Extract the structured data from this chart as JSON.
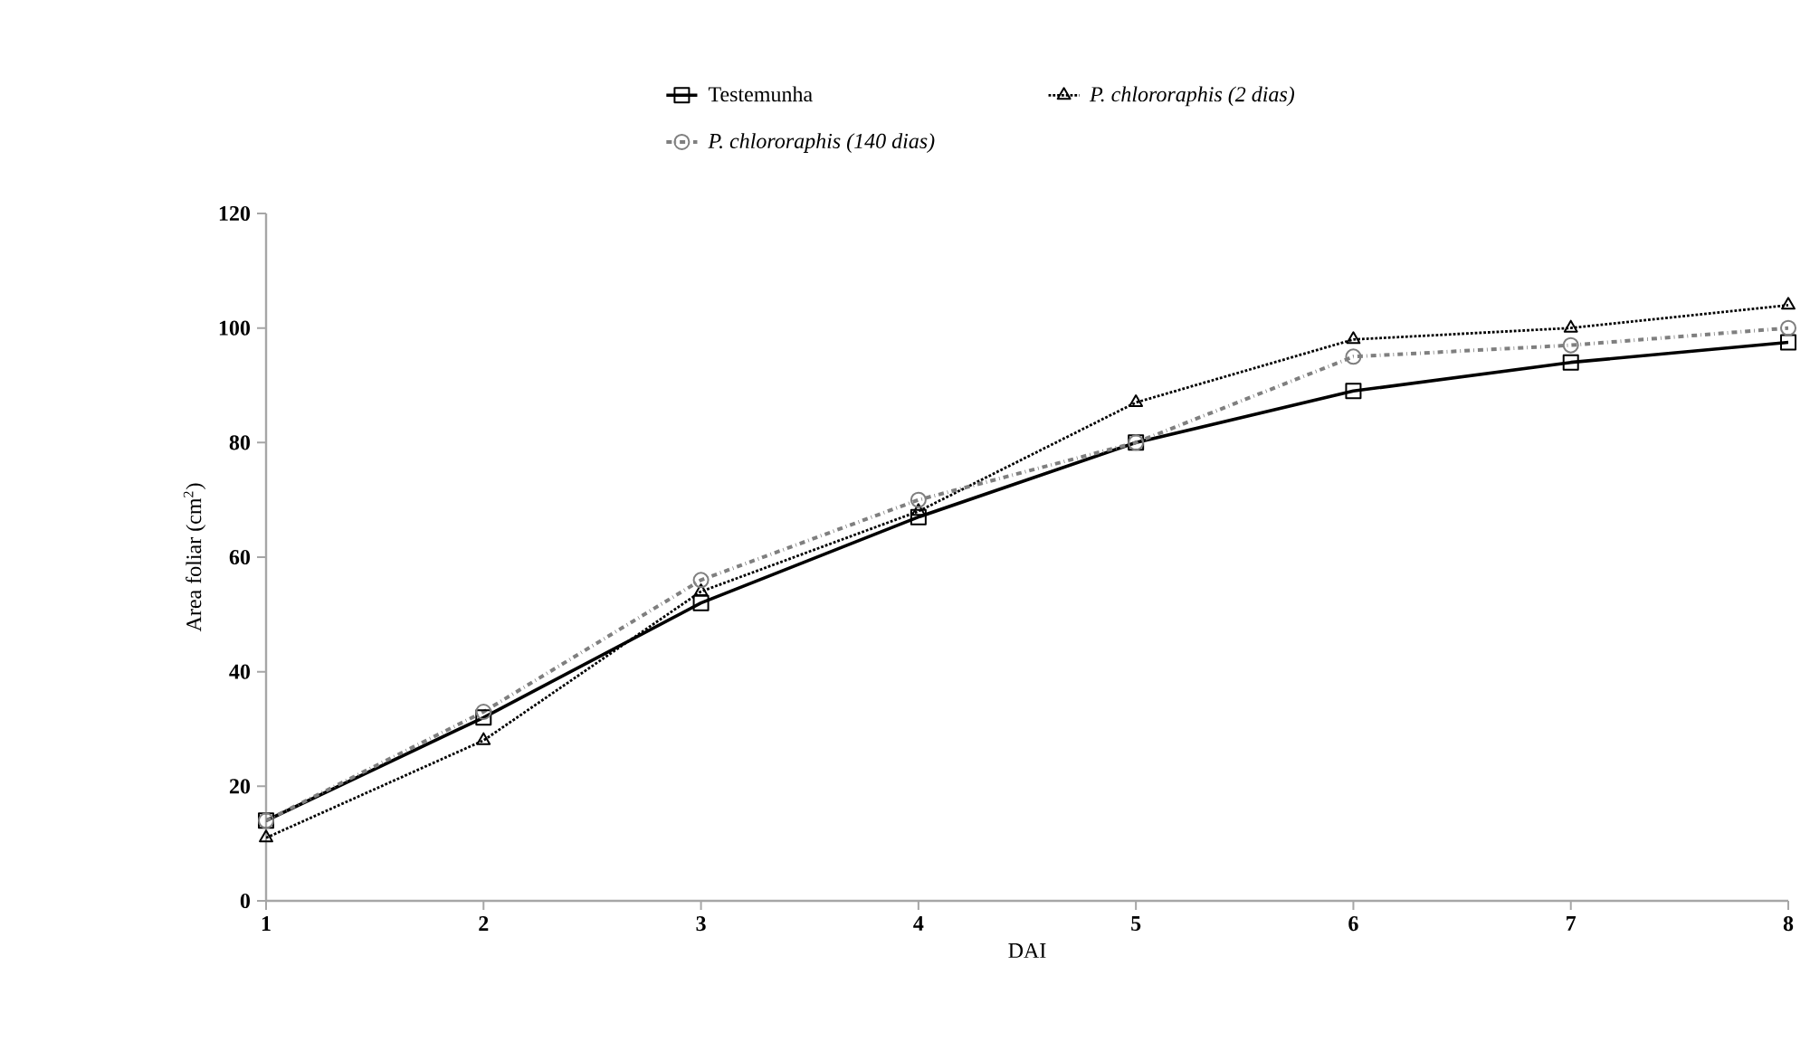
{
  "chart_data": {
    "type": "line",
    "xlabel": "DAI",
    "ylabel": "Area  foliar (cm$^{2}$)",
    "x": [
      1,
      2,
      3,
      4,
      5,
      6,
      7,
      8
    ],
    "xlim": [
      1,
      8
    ],
    "xticks": [
      1,
      2,
      3,
      4,
      5,
      6,
      7,
      8
    ],
    "ylim": [
      0,
      120
    ],
    "yticks": [
      0,
      20,
      40,
      60,
      80,
      100,
      120
    ],
    "grid": false,
    "legend": "top",
    "series": [
      {
        "name": "Testemunha",
        "color": "#000000",
        "marker": "square",
        "line_style": "solid",
        "values": [
          14,
          32,
          52,
          67,
          80,
          89,
          94,
          97.5
        ]
      },
      {
        "name": "*P. chlororaphis (2 dias)*",
        "color": "#000000",
        "marker": "triangle",
        "line_style": "dotted",
        "values": [
          11,
          28,
          54,
          68,
          87,
          98,
          100,
          104
        ]
      },
      {
        "name": "*P. chlororaphis (140 dias)*",
        "color": "#7f7f7f",
        "marker": "circle",
        "line_style": "dashed",
        "values": [
          14,
          33,
          56,
          70,
          80,
          95,
          97,
          100
        ]
      }
    ]
  }
}
